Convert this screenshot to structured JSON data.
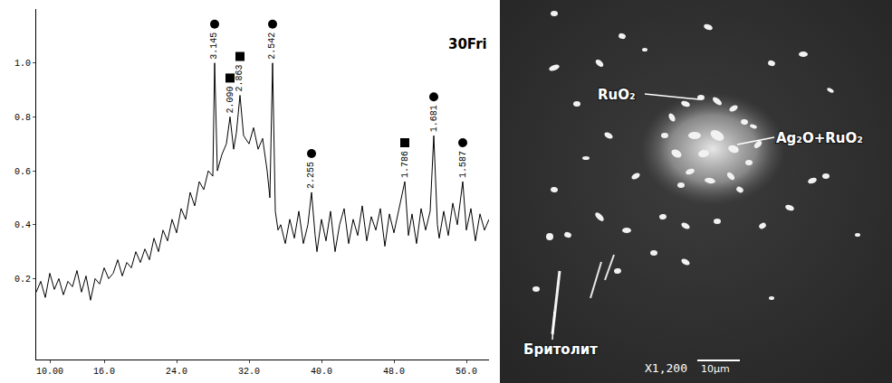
{
  "chart_data": {
    "type": "line",
    "title": "30Fri",
    "color": "#000000",
    "x": [
      8.5,
      9,
      9.5,
      10,
      10.5,
      11,
      11.5,
      12,
      12.5,
      13,
      13.5,
      14,
      14.5,
      15,
      15.5,
      16,
      16.5,
      17,
      17.5,
      18,
      18.5,
      19,
      19.5,
      20,
      20.5,
      21,
      21.5,
      22,
      22.5,
      23,
      23.5,
      24,
      24.5,
      25,
      25.5,
      26,
      26.5,
      27,
      27.5,
      28,
      28.2,
      28.5,
      29,
      29.5,
      29.9,
      30.3,
      30.6,
      31.0,
      31.4,
      32,
      32.5,
      33,
      33.5,
      34,
      34.3,
      34.6,
      34.9,
      35.2,
      35.5,
      36,
      36.5,
      37,
      37.5,
      38,
      38.5,
      38.9,
      39.3,
      39.5,
      40,
      40.5,
      41,
      41.5,
      42,
      42.5,
      43,
      43.5,
      44,
      44.5,
      45,
      45.5,
      46,
      46.5,
      47,
      47.5,
      48,
      48.5,
      49.2,
      49.6,
      50,
      50.5,
      51,
      51.5,
      52,
      52.4,
      52.8,
      53,
      53.5,
      54,
      54.5,
      55,
      55.6,
      56,
      56.5,
      57,
      57.5,
      58,
      58.5
    ],
    "values": [
      0.15,
      0.19,
      0.13,
      0.22,
      0.16,
      0.2,
      0.14,
      0.19,
      0.17,
      0.23,
      0.15,
      0.21,
      0.12,
      0.2,
      0.18,
      0.24,
      0.2,
      0.22,
      0.27,
      0.21,
      0.26,
      0.24,
      0.3,
      0.26,
      0.31,
      0.27,
      0.35,
      0.3,
      0.38,
      0.34,
      0.42,
      0.37,
      0.46,
      0.42,
      0.52,
      0.47,
      0.56,
      0.53,
      0.6,
      0.58,
      1.0,
      0.6,
      0.66,
      0.7,
      0.8,
      0.68,
      0.74,
      0.88,
      0.73,
      0.7,
      0.76,
      0.68,
      0.72,
      0.6,
      0.5,
      1.0,
      0.45,
      0.38,
      0.4,
      0.33,
      0.42,
      0.35,
      0.45,
      0.33,
      0.4,
      0.52,
      0.36,
      0.3,
      0.42,
      0.34,
      0.45,
      0.3,
      0.4,
      0.46,
      0.33,
      0.42,
      0.36,
      0.47,
      0.34,
      0.43,
      0.38,
      0.46,
      0.32,
      0.44,
      0.37,
      0.45,
      0.56,
      0.36,
      0.44,
      0.33,
      0.46,
      0.38,
      0.45,
      0.73,
      0.4,
      0.35,
      0.45,
      0.36,
      0.48,
      0.4,
      0.56,
      0.38,
      0.46,
      0.34,
      0.44,
      0.38,
      0.42
    ],
    "xlim": [
      8.5,
      58.5
    ],
    "xticks": [
      {
        "value": 10,
        "label": "10.00"
      },
      {
        "value": 16,
        "label": "16.0"
      },
      {
        "value": 24,
        "label": "24.0"
      },
      {
        "value": 32,
        "label": "32.0"
      },
      {
        "value": 40,
        "label": "40.0"
      },
      {
        "value": 48,
        "label": "48.0"
      },
      {
        "value": 56,
        "label": "56.0"
      }
    ],
    "ylim": [
      -0.1,
      1.2
    ],
    "yticks": [
      0.2,
      0.4,
      0.6,
      0.8,
      {
        "value": 1.0,
        "label": "1.0"
      }
    ],
    "grid": false,
    "annotations": [
      {
        "x": 28.2,
        "y": 1.0,
        "text": "3.145",
        "marker": "circle"
      },
      {
        "x": 29.9,
        "y": 0.8,
        "text": "2.090",
        "marker": "square"
      },
      {
        "x": 31.0,
        "y": 0.88,
        "text": "2.863",
        "marker": "square"
      },
      {
        "x": 34.6,
        "y": 1.0,
        "text": "2.542",
        "marker": "circle"
      },
      {
        "x": 38.9,
        "y": 0.52,
        "text": "2.255",
        "marker": "circle"
      },
      {
        "x": 49.2,
        "y": 0.56,
        "text": "1.786",
        "marker": "square"
      },
      {
        "x": 52.4,
        "y": 0.73,
        "text": "1.681",
        "marker": "circle"
      },
      {
        "x": 55.6,
        "y": 0.56,
        "text": "1.587",
        "marker": "circle"
      }
    ]
  },
  "micrograph": {
    "labels": [
      "RuO₂",
      "Ag₂O+RuO₂",
      "Бритолит"
    ],
    "magnification": "X1,200",
    "scale_bar": "10μm"
  }
}
